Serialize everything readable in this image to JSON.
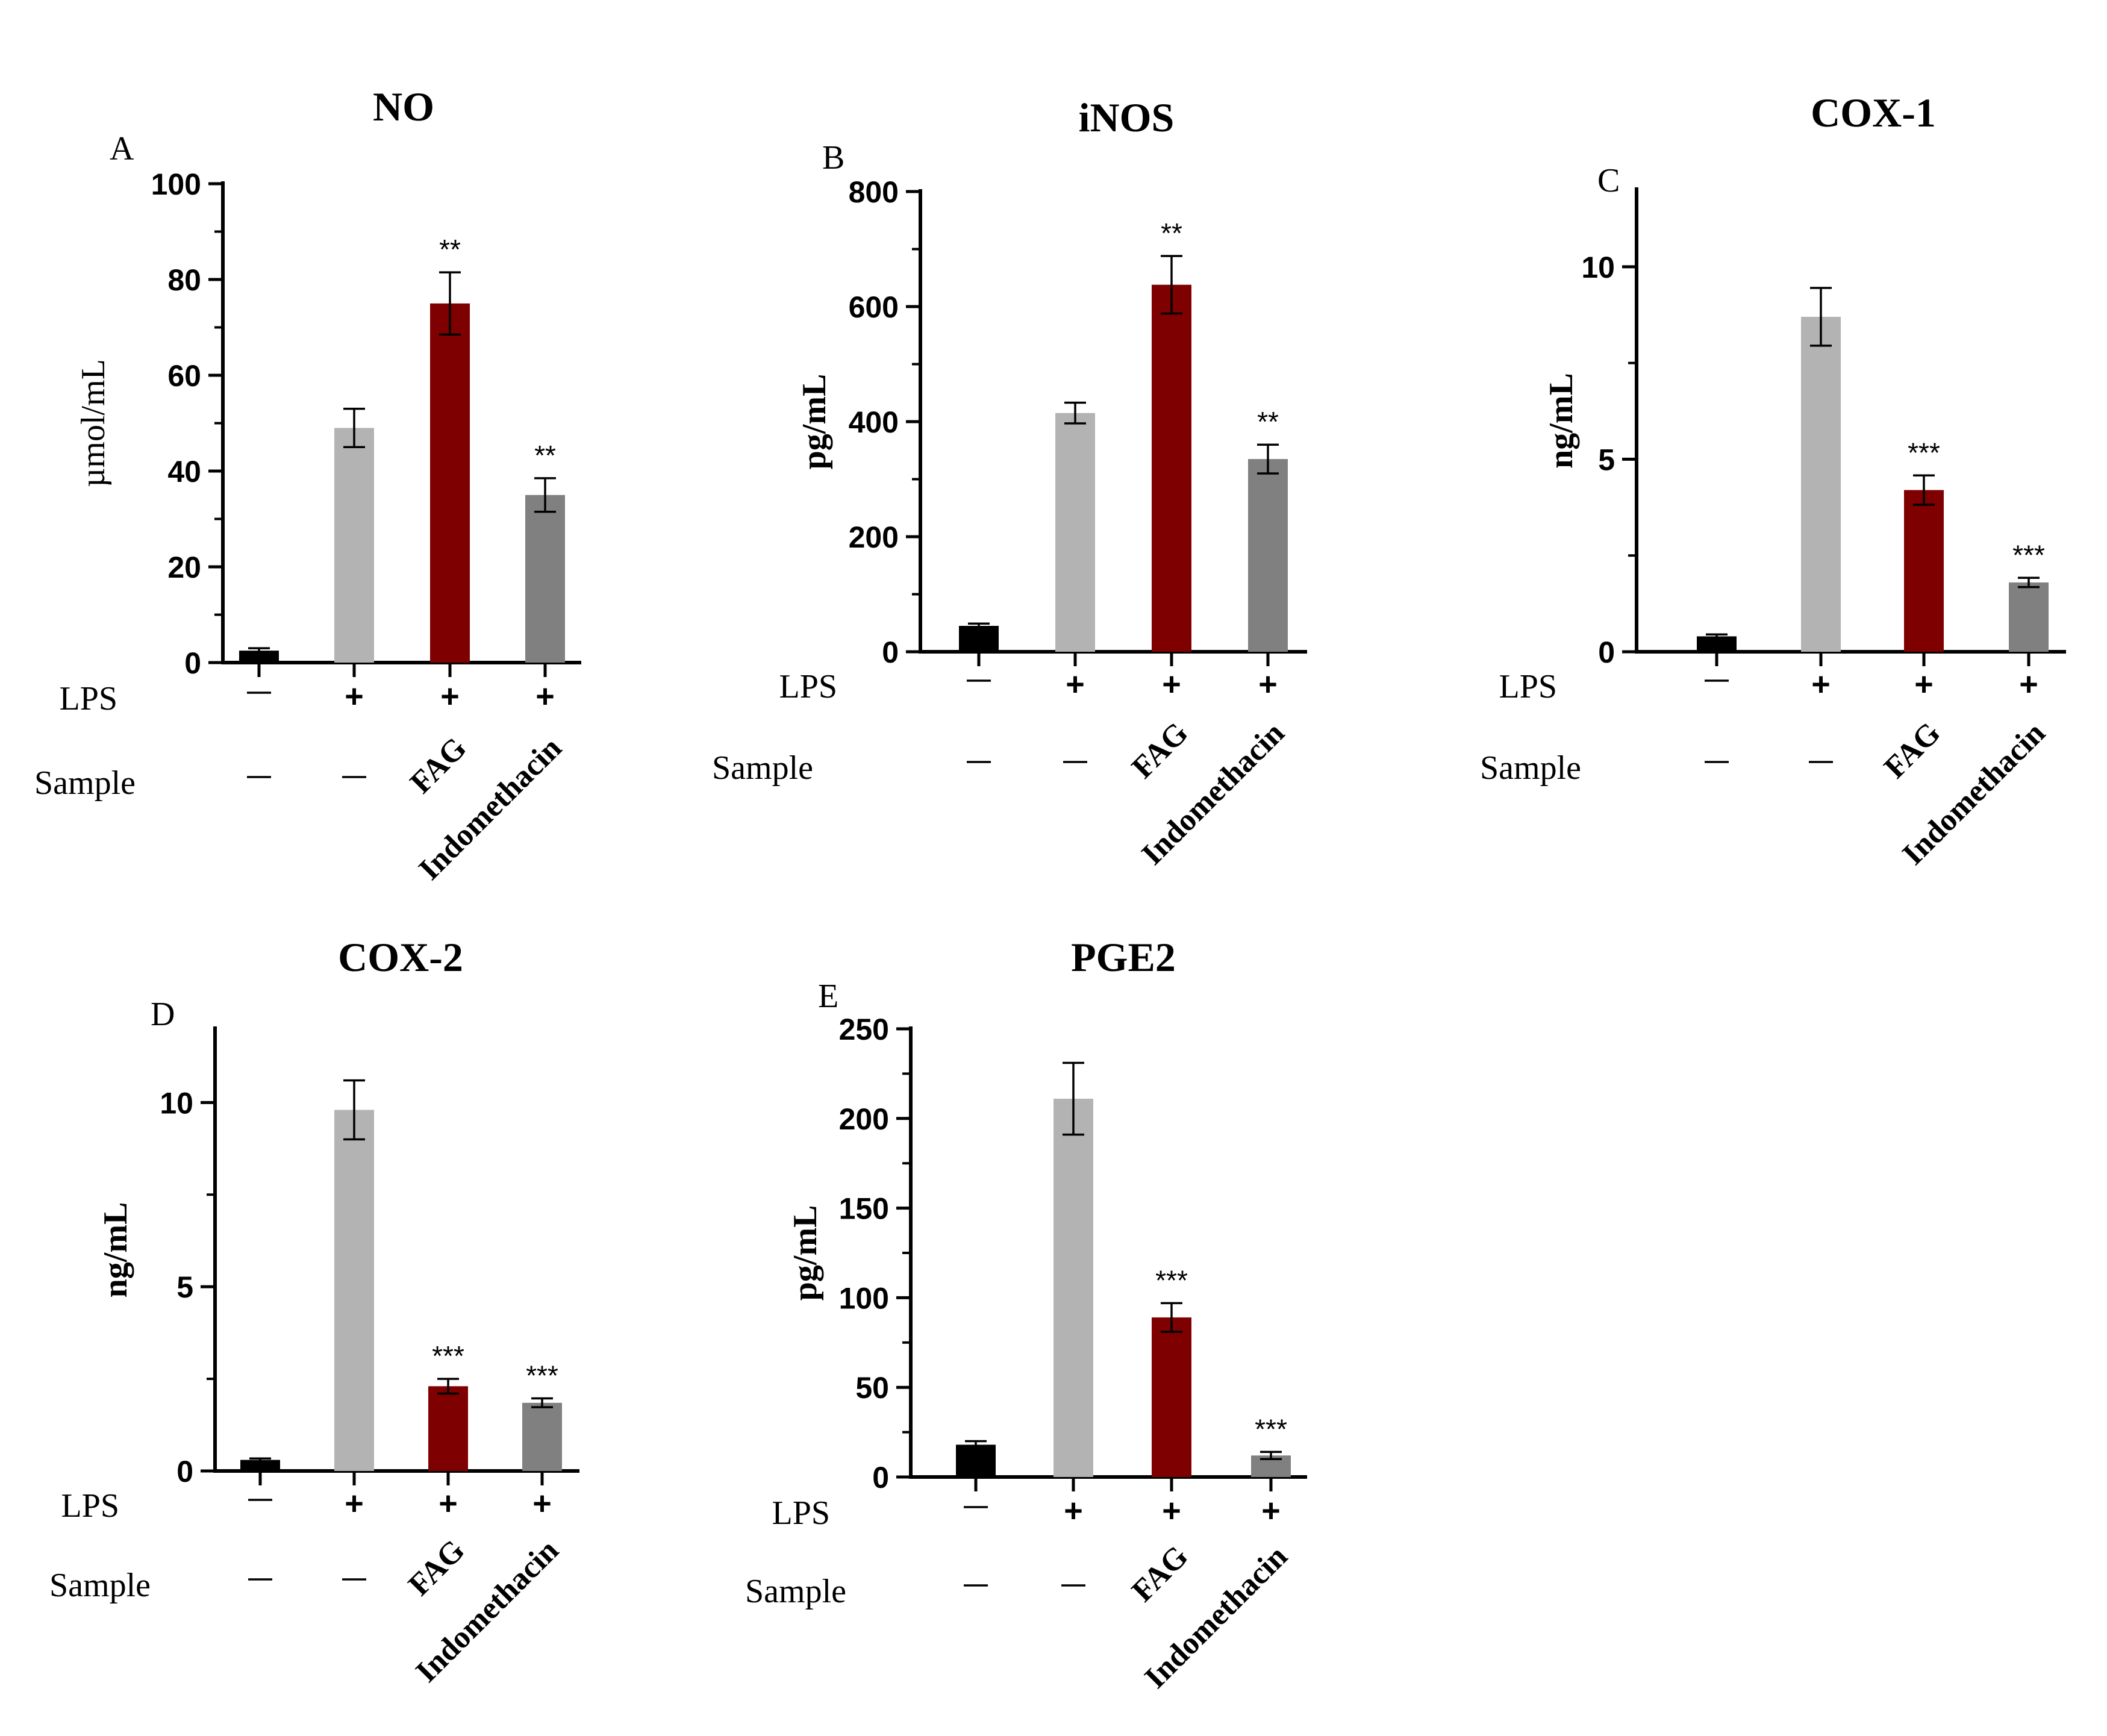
{
  "colors": {
    "control": "#000000",
    "lps": "#b3b3b3",
    "fag": "#7f0000",
    "indomethacin": "#808080",
    "axis": "#000000",
    "text": "#000000"
  },
  "row_labels": {
    "lps": "LPS",
    "sample": "Sample"
  },
  "chart_data": [
    {
      "type": "bar",
      "panel": "A",
      "title": "NO",
      "ylabel": "µmol/mL",
      "ylim": [
        0,
        100
      ],
      "yticks": [
        0,
        20,
        40,
        60,
        80,
        100
      ],
      "lps": [
        "—",
        "+",
        "+",
        "+"
      ],
      "sample": [
        "—",
        "—",
        "FAG",
        "Indomethacin"
      ],
      "values": [
        2.5,
        49,
        75,
        35
      ],
      "errors": [
        0.5,
        4,
        6.5,
        3.5
      ],
      "significance": [
        "",
        "",
        "**",
        "**"
      ]
    },
    {
      "type": "bar",
      "panel": "B",
      "title": "iNOS",
      "ylabel": "pg/mL",
      "ylim": [
        0,
        800
      ],
      "yticks": [
        0,
        200,
        400,
        600,
        800
      ],
      "lps": [
        "—",
        "+",
        "+",
        "+"
      ],
      "sample": [
        "—",
        "—",
        "FAG",
        "Indomethacin"
      ],
      "values": [
        45,
        415,
        638,
        335
      ],
      "errors": [
        4,
        18,
        50,
        25
      ],
      "significance": [
        "",
        "",
        "**",
        "**"
      ]
    },
    {
      "type": "bar",
      "panel": "C",
      "title": "COX-1",
      "ylabel": "ng/mL",
      "ylim": [
        0,
        12
      ],
      "yticks": [
        0,
        5,
        10
      ],
      "lps": [
        "—",
        "+",
        "+",
        "+"
      ],
      "sample": [
        "—",
        "—",
        "FAG",
        "Indomethacin"
      ],
      "values": [
        0.4,
        8.7,
        4.2,
        1.8
      ],
      "errors": [
        0.05,
        0.75,
        0.38,
        0.12
      ],
      "significance": [
        "",
        "",
        "***",
        "***"
      ]
    },
    {
      "type": "bar",
      "panel": "D",
      "title": "COX-2",
      "ylabel": "ng/mL",
      "ylim": [
        0,
        12
      ],
      "yticks": [
        0,
        5,
        10
      ],
      "lps": [
        "—",
        "+",
        "+",
        "+"
      ],
      "sample": [
        "—",
        "—",
        "FAG",
        "Indomethacin"
      ],
      "values": [
        0.3,
        9.8,
        2.3,
        1.85
      ],
      "errors": [
        0.04,
        0.8,
        0.2,
        0.12
      ],
      "significance": [
        "",
        "",
        "***",
        "***"
      ]
    },
    {
      "type": "bar",
      "panel": "E",
      "title": "PGE2",
      "ylabel": "pg/mL",
      "ylim": [
        0,
        250
      ],
      "yticks": [
        0,
        50,
        100,
        150,
        200,
        250
      ],
      "lps": [
        "—",
        "+",
        "+",
        "+"
      ],
      "sample": [
        "—",
        "—",
        "FAG",
        "Indomethacin"
      ],
      "values": [
        18,
        211,
        89,
        12
      ],
      "errors": [
        2,
        20,
        8,
        2
      ],
      "significance": [
        "",
        "",
        "***",
        "***"
      ]
    }
  ]
}
